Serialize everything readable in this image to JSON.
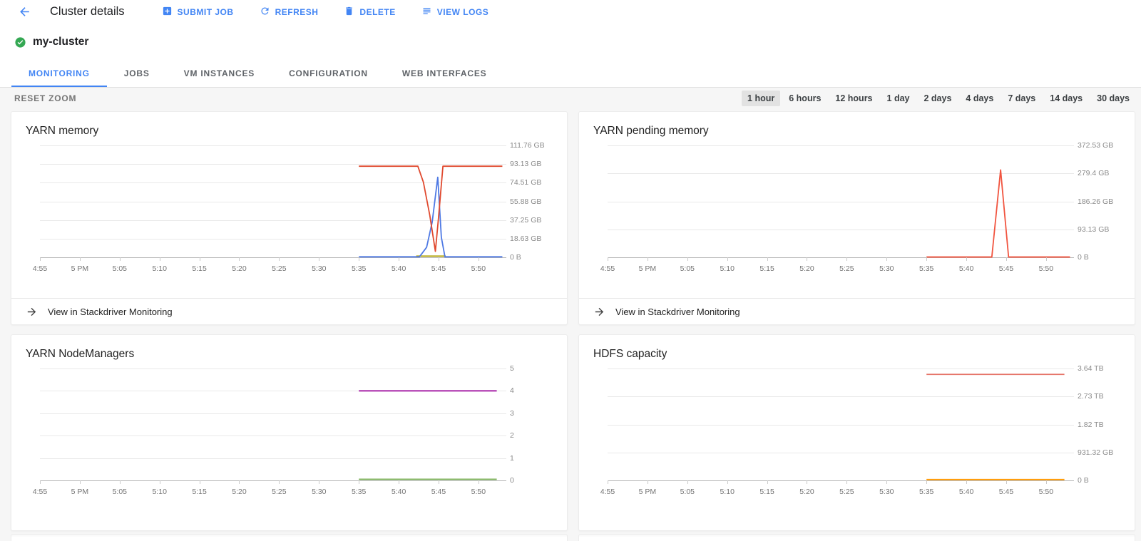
{
  "header": {
    "title": "Cluster details",
    "actions": [
      {
        "label": "SUBMIT JOB",
        "icon": "add-box-icon"
      },
      {
        "label": "REFRESH",
        "icon": "refresh-icon"
      },
      {
        "label": "DELETE",
        "icon": "delete-icon"
      },
      {
        "label": "VIEW LOGS",
        "icon": "view-logs-icon"
      }
    ]
  },
  "cluster": {
    "name": "my-cluster",
    "status": "running",
    "status_icon": "check-circle-icon"
  },
  "tabs": [
    {
      "label": "MONITORING",
      "active": true
    },
    {
      "label": "JOBS",
      "active": false
    },
    {
      "label": "VM INSTANCES",
      "active": false
    },
    {
      "label": "CONFIGURATION",
      "active": false
    },
    {
      "label": "WEB INTERFACES",
      "active": false
    }
  ],
  "toolbar": {
    "reset_zoom_label": "RESET ZOOM",
    "ranges": [
      "1 hour",
      "6 hours",
      "12 hours",
      "1 day",
      "2 days",
      "4 days",
      "7 days",
      "14 days",
      "30 days"
    ],
    "selected_index": 0
  },
  "labels": {
    "view_in_stackdriver": "View in Stackdriver Monitoring"
  },
  "colors": {
    "accent_blue": "#4285f4",
    "status_green": "#34a853",
    "series_red": "#e0492e",
    "series_blue": "#4e79e4",
    "series_yellow": "#b2a50e",
    "series_orange_red": "#f1543f",
    "series_purple": "#990099",
    "series_green": "#7cb05a",
    "series_salmon": "#e57368",
    "series_orange": "#ff9900"
  },
  "chart_data": [
    {
      "type": "line",
      "title": "YARN memory",
      "x_domain_minutes": [
        0,
        58.5
      ],
      "x_ticks": [
        {
          "min": 0,
          "label": "4:55"
        },
        {
          "min": 5,
          "label": "5 PM"
        },
        {
          "min": 10,
          "label": "5:05"
        },
        {
          "min": 15,
          "label": "5:10"
        },
        {
          "min": 20,
          "label": "5:15"
        },
        {
          "min": 25,
          "label": "5:20"
        },
        {
          "min": 30,
          "label": "5:25"
        },
        {
          "min": 35,
          "label": "5:30"
        },
        {
          "min": 40,
          "label": "5:35"
        },
        {
          "min": 45,
          "label": "5:40"
        },
        {
          "min": 50,
          "label": "5:45"
        },
        {
          "min": 55,
          "label": "5:50"
        }
      ],
      "y_ticks": [
        "111.76 GB",
        "93.13 GB",
        "74.51 GB",
        "55.88 GB",
        "37.25 GB",
        "18.63 GB",
        "0 B"
      ],
      "y_max_gb": 111.76,
      "grid": true,
      "legend": "none",
      "series": [
        {
          "name": "yellow",
          "color": "#b2a50e",
          "points": [
            [
              47.2,
              1.2
            ],
            [
              50.9,
              1.2
            ]
          ]
        },
        {
          "name": "blue",
          "color": "#4e79e4",
          "points": [
            [
              40,
              0.5
            ],
            [
              47.6,
              0.5
            ],
            [
              48.5,
              10
            ],
            [
              49.2,
              35
            ],
            [
              49.9,
              80
            ],
            [
              50.35,
              20
            ],
            [
              50.8,
              0.5
            ],
            [
              58,
              0.5
            ]
          ]
        },
        {
          "name": "red",
          "color": "#e0492e",
          "points": [
            [
              40,
              91
            ],
            [
              47.4,
              91
            ],
            [
              48.1,
              75
            ],
            [
              48.9,
              42
            ],
            [
              49.6,
              6
            ],
            [
              50.0,
              40
            ],
            [
              50.55,
              91
            ],
            [
              58,
              91
            ]
          ]
        }
      ]
    },
    {
      "type": "line",
      "title": "YARN pending memory",
      "x_domain_minutes": [
        0,
        58.5
      ],
      "x_ticks": [
        {
          "min": 0,
          "label": "4:55"
        },
        {
          "min": 5,
          "label": "5 PM"
        },
        {
          "min": 10,
          "label": "5:05"
        },
        {
          "min": 15,
          "label": "5:10"
        },
        {
          "min": 20,
          "label": "5:15"
        },
        {
          "min": 25,
          "label": "5:20"
        },
        {
          "min": 30,
          "label": "5:25"
        },
        {
          "min": 35,
          "label": "5:30"
        },
        {
          "min": 40,
          "label": "5:35"
        },
        {
          "min": 45,
          "label": "5:40"
        },
        {
          "min": 50,
          "label": "5:45"
        },
        {
          "min": 55,
          "label": "5:50"
        }
      ],
      "y_ticks": [
        "372.53 GB",
        "279.4 GB",
        "186.26 GB",
        "93.13 GB",
        "0 B"
      ],
      "y_max_gb": 372.53,
      "grid": true,
      "legend": "none",
      "series": [
        {
          "name": "orange-red",
          "color": "#f1543f",
          "points": [
            [
              40,
              1
            ],
            [
              48.2,
              1
            ],
            [
              49.3,
              291
            ],
            [
              50.3,
              1
            ],
            [
              58,
              1
            ]
          ]
        }
      ]
    },
    {
      "type": "line",
      "title": "YARN NodeManagers",
      "x_domain_minutes": [
        0,
        58.5
      ],
      "x_ticks": [
        {
          "min": 0,
          "label": "4:55"
        },
        {
          "min": 5,
          "label": "5 PM"
        },
        {
          "min": 10,
          "label": "5:05"
        },
        {
          "min": 15,
          "label": "5:10"
        },
        {
          "min": 20,
          "label": "5:15"
        },
        {
          "min": 25,
          "label": "5:20"
        },
        {
          "min": 30,
          "label": "5:25"
        },
        {
          "min": 35,
          "label": "5:30"
        },
        {
          "min": 40,
          "label": "5:35"
        },
        {
          "min": 45,
          "label": "5:40"
        },
        {
          "min": 50,
          "label": "5:45"
        },
        {
          "min": 55,
          "label": "5:50"
        }
      ],
      "y_ticks": [
        "5",
        "4",
        "3",
        "2",
        "1",
        "0"
      ],
      "y_max_gb": 5,
      "grid": true,
      "legend": "none",
      "series": [
        {
          "name": "green",
          "color": "#7cb05a",
          "points": [
            [
              40,
              0.05
            ],
            [
              57.3,
              0.05
            ]
          ]
        },
        {
          "name": "purple",
          "color": "#990099",
          "points": [
            [
              40,
              4
            ],
            [
              57.3,
              4
            ]
          ]
        }
      ]
    },
    {
      "type": "line",
      "title": "HDFS capacity",
      "x_domain_minutes": [
        0,
        58.5
      ],
      "x_ticks": [
        {
          "min": 0,
          "label": "4:55"
        },
        {
          "min": 5,
          "label": "5 PM"
        },
        {
          "min": 10,
          "label": "5:05"
        },
        {
          "min": 15,
          "label": "5:10"
        },
        {
          "min": 20,
          "label": "5:15"
        },
        {
          "min": 25,
          "label": "5:20"
        },
        {
          "min": 30,
          "label": "5:25"
        },
        {
          "min": 35,
          "label": "5:30"
        },
        {
          "min": 40,
          "label": "5:35"
        },
        {
          "min": 45,
          "label": "5:40"
        },
        {
          "min": 50,
          "label": "5:45"
        },
        {
          "min": 55,
          "label": "5:50"
        }
      ],
      "y_ticks": [
        "3.64 TB",
        "2.73 TB",
        "1.82 TB",
        "931.32 GB",
        "0 B"
      ],
      "y_max_gb": 3725.29,
      "grid": true,
      "legend": "none",
      "series": [
        {
          "name": "orange",
          "color": "#ff9900",
          "points": [
            [
              40,
              28
            ],
            [
              57.3,
              28
            ]
          ]
        },
        {
          "name": "salmon",
          "color": "#e57368",
          "points": [
            [
              40,
              3530
            ],
            [
              57.3,
              3530
            ]
          ]
        }
      ]
    }
  ]
}
